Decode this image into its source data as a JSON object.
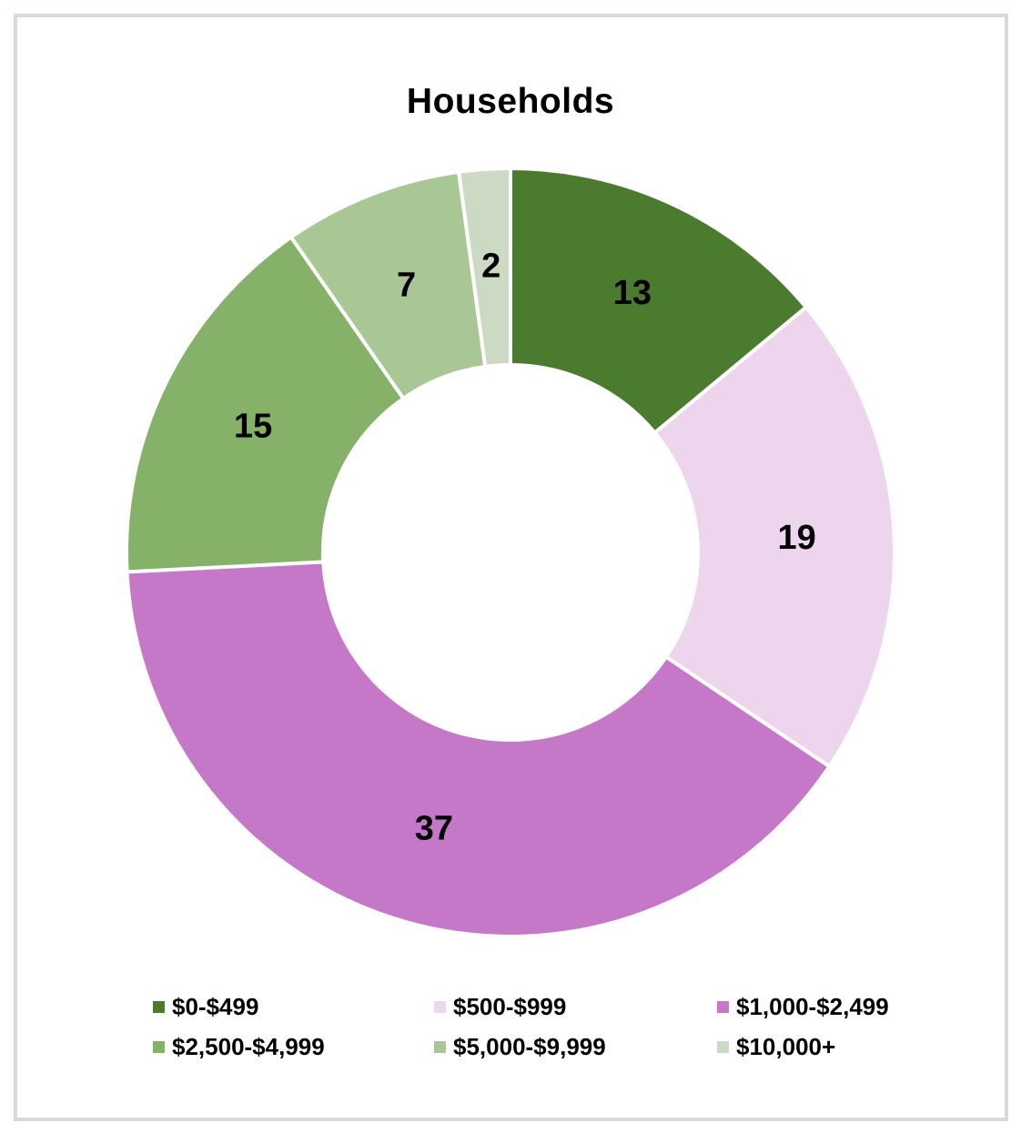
{
  "chart_data": {
    "type": "pie",
    "subtype": "donut",
    "title": "Households",
    "categories": [
      "$0-$499",
      "$500-$999",
      "$1,000-$2,499",
      "$2,500-$4,999",
      "$5,000-$9,999",
      "$10,000+"
    ],
    "values": [
      13,
      19,
      37,
      15,
      7,
      2
    ],
    "colors": [
      "#4a7b2e",
      "#ecd5ed",
      "#c678c8",
      "#85b169",
      "#a9c795",
      "#ccd9c3"
    ],
    "data_labels_shown": true,
    "start_angle_deg": 0,
    "direction": "clockwise",
    "hole_ratio": 0.49,
    "legend_position": "bottom",
    "slice_border_color": "#ffffff",
    "frame_border_color": "#d9d9d9",
    "background_color": "#ffffff",
    "label_color": "#000000"
  }
}
